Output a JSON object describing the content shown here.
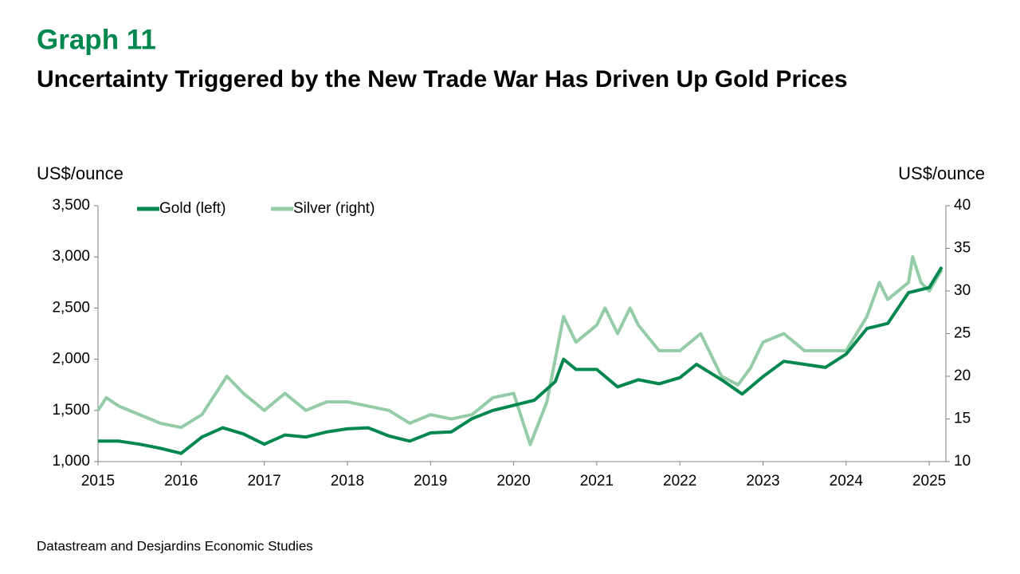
{
  "chart_data": {
    "type": "line",
    "title": "Graph 11",
    "subtitle": "Uncertainty Triggered by the New Trade War Has Driven Up Gold Prices",
    "y_label": "US$/ounce",
    "y2_label": "US$/ounce",
    "source": "Datastream and Desjardins Economic Studies",
    "xlim": [
      2015,
      2025.2
    ],
    "xticks": [
      2015,
      2016,
      2017,
      2018,
      2019,
      2020,
      2021,
      2022,
      2023,
      2024,
      2025
    ],
    "ylim": [
      1000,
      3500
    ],
    "yticks": [
      {
        "value": 1000,
        "label": "1,000"
      },
      {
        "value": 1500,
        "label": "1,500"
      },
      {
        "value": 2000,
        "label": "2,000"
      },
      {
        "value": 2500,
        "label": "2,500"
      },
      {
        "value": 3000,
        "label": "3,000"
      },
      {
        "value": 3500,
        "label": "3,500"
      }
    ],
    "y2lim": [
      10,
      40
    ],
    "y2ticks": [
      10,
      15,
      20,
      25,
      30,
      35,
      40
    ],
    "legend": "top-left",
    "series": [
      {
        "name": "Gold (left)",
        "color": "#00874e",
        "axis": "y",
        "x": [
          2015,
          2015.25,
          2015.5,
          2015.75,
          2016,
          2016.25,
          2016.5,
          2016.75,
          2017,
          2017.25,
          2017.5,
          2017.75,
          2018,
          2018.25,
          2018.5,
          2018.75,
          2019,
          2019.25,
          2019.5,
          2019.75,
          2020,
          2020.25,
          2020.5,
          2020.6,
          2020.75,
          2021,
          2021.25,
          2021.5,
          2021.75,
          2022,
          2022.2,
          2022.5,
          2022.75,
          2023,
          2023.25,
          2023.5,
          2023.75,
          2024,
          2024.25,
          2024.5,
          2024.75,
          2025,
          2025.15
        ],
        "values": [
          1200,
          1200,
          1170,
          1130,
          1080,
          1240,
          1330,
          1270,
          1170,
          1260,
          1240,
          1290,
          1320,
          1330,
          1250,
          1200,
          1280,
          1290,
          1420,
          1500,
          1550,
          1600,
          1780,
          2000,
          1900,
          1900,
          1730,
          1800,
          1760,
          1820,
          1950,
          1800,
          1660,
          1830,
          1980,
          1950,
          1920,
          2050,
          2300,
          2350,
          2650,
          2700,
          2900
        ]
      },
      {
        "name": "Silver (right)",
        "color": "#93cca6",
        "axis": "y2",
        "x": [
          2015,
          2015.1,
          2015.25,
          2015.5,
          2015.75,
          2016,
          2016.25,
          2016.55,
          2016.75,
          2017,
          2017.25,
          2017.5,
          2017.75,
          2018,
          2018.25,
          2018.5,
          2018.75,
          2019,
          2019.25,
          2019.5,
          2019.75,
          2020,
          2020.2,
          2020.4,
          2020.6,
          2020.75,
          2021,
          2021.1,
          2021.25,
          2021.4,
          2021.5,
          2021.75,
          2022,
          2022.25,
          2022.5,
          2022.7,
          2022.85,
          2023,
          2023.25,
          2023.5,
          2023.75,
          2024,
          2024.25,
          2024.4,
          2024.5,
          2024.75,
          2024.8,
          2024.9,
          2025,
          2025.15
        ],
        "values": [
          16,
          17.5,
          16.5,
          15.5,
          14.5,
          14,
          15.5,
          20,
          18,
          16,
          18,
          16,
          17,
          17,
          16.5,
          16,
          14.5,
          15.5,
          15,
          15.5,
          17.5,
          18,
          12,
          17,
          27,
          24,
          26,
          28,
          25,
          28,
          26,
          23,
          23,
          25,
          20,
          19,
          21,
          24,
          25,
          23,
          23,
          23,
          27,
          31,
          29,
          31,
          34,
          31,
          30,
          32.5
        ]
      }
    ]
  }
}
